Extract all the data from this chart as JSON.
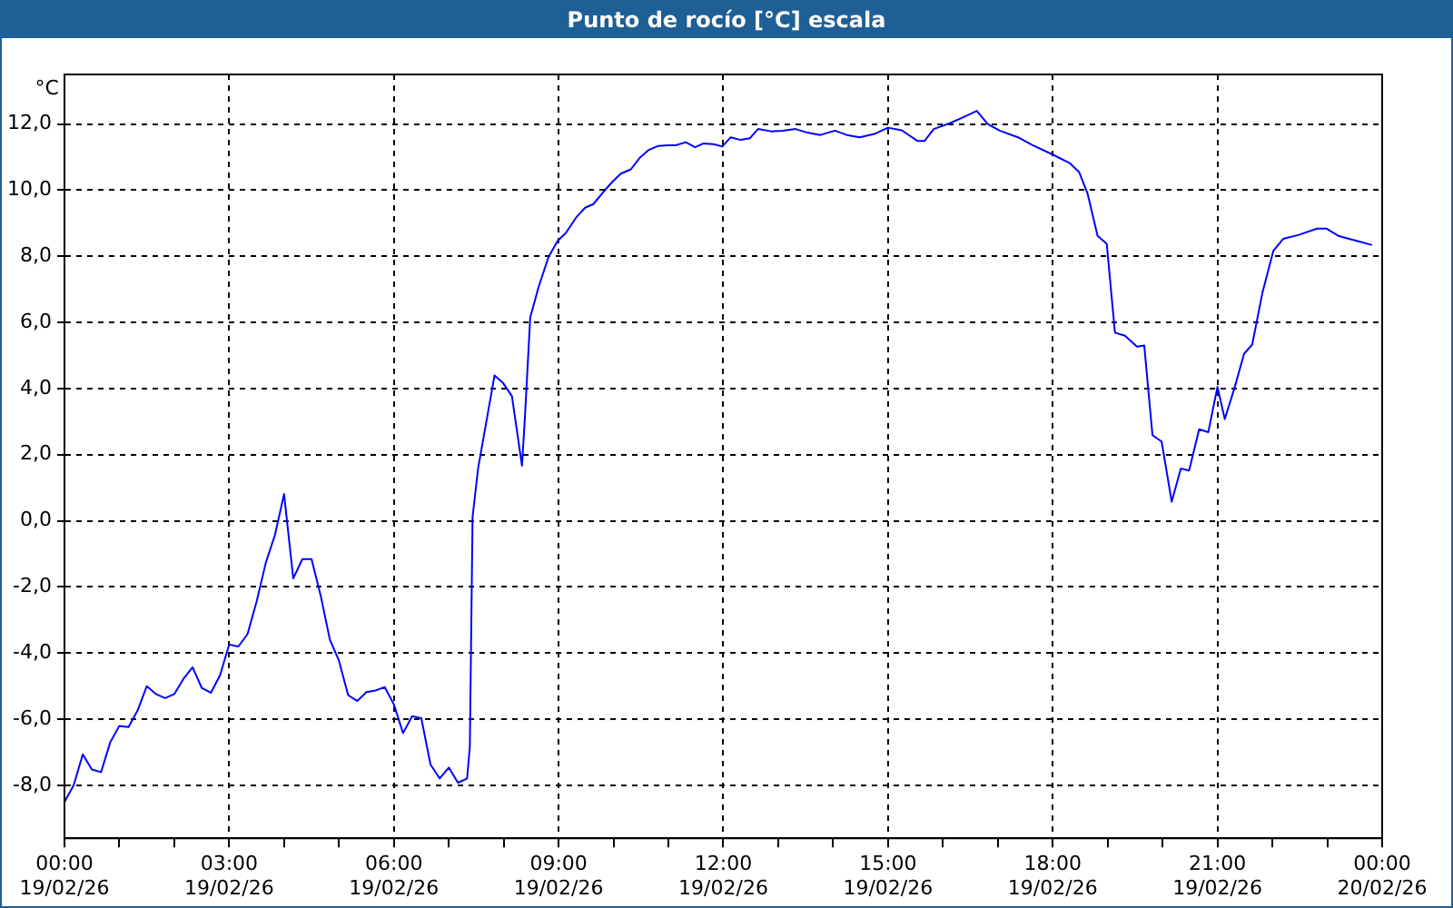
{
  "chart_data": {
    "type": "line",
    "title": "Punto de rocío [°C] escala",
    "ylabel": "°C",
    "x": [
      "--02-19T00:00",
      "--02-19T00:10",
      "--02-19T00:20",
      "--02-19T00:30",
      "--02-19T00:40",
      "--02-19T00:50",
      "--02-19T01:00",
      "--02-19T01:10",
      "--02-19T01:20",
      "--02-19T01:30",
      "--02-19T01:40",
      "--02-19T01:50",
      "--02-19T02:00",
      "--02-19T02:10",
      "--02-19T02:20",
      "--02-19T02:30",
      "--02-19T02:40",
      "--02-19T02:50",
      "--02-19T03:00",
      "--02-19T03:10",
      "--02-19T03:20",
      "--02-19T03:30",
      "--02-19T03:40",
      "--02-19T03:50",
      "--02-19T04:00",
      "--02-19T04:10",
      "--02-19T04:20",
      "--02-19T04:30",
      "--02-19T04:40",
      "--02-19T04:50",
      "--02-19T05:00",
      "--02-19T05:10",
      "--02-19T05:20",
      "--02-19T05:30",
      "--02-19T05:40",
      "--02-19T05:50",
      "--02-19T06:00",
      "--02-19T06:10",
      "--02-19T06:20",
      "--02-19T06:30",
      "--02-19T06:40",
      "--02-19T06:50",
      "--02-19T07:00",
      "--02-19T07:10",
      "--02-19T07:20",
      "--02-19T07:23",
      "--02-19T07:26",
      "--02-19T07:32",
      "--02-19T07:50",
      "--02-19T07:59",
      "--02-19T08:09",
      "--02-19T08:20",
      "--02-19T08:23",
      "--02-19T08:29",
      "--02-19T08:38",
      "--02-19T08:49",
      "--02-19T08:59",
      "--02-19T09:08",
      "--02-19T09:19",
      "--02-19T09:29",
      "--02-19T09:38",
      "--02-19T09:49",
      "--02-19T09:59",
      "--02-19T10:08",
      "--02-19T10:19",
      "--02-19T10:29",
      "--02-19T10:38",
      "--02-19T10:49",
      "--02-19T10:59",
      "--02-19T11:08",
      "--02-19T11:19",
      "--02-19T11:29",
      "--02-19T11:38",
      "--02-19T11:49",
      "--02-19T11:59",
      "--02-19T12:08",
      "--02-19T12:19",
      "--02-19T12:29",
      "--02-19T12:38",
      "--02-19T12:52",
      "--02-19T13:05",
      "--02-19T13:19",
      "--02-19T13:32",
      "--02-19T13:46",
      "--02-19T14:02",
      "--02-19T14:15",
      "--02-19T14:29",
      "--02-19T14:45",
      "--02-19T15:00",
      "--02-19T15:15",
      "--02-19T15:32",
      "--02-19T15:40",
      "--02-19T15:50",
      "--02-19T16:08",
      "--02-19T16:25",
      "--02-19T16:37",
      "--02-19T16:49",
      "--02-19T17:02",
      "--02-19T17:22",
      "--02-19T17:38",
      "--02-19T17:59",
      "--02-19T18:19",
      "--02-19T18:29",
      "--02-19T18:38",
      "--02-19T18:49",
      "--02-19T18:59",
      "--02-19T19:08",
      "--02-19T19:19",
      "--02-19T19:32",
      "--02-19T19:40",
      "--02-19T19:49",
      "--02-19T19:59",
      "--02-19T20:10",
      "--02-19T20:20",
      "--02-19T20:29",
      "--02-19T20:40",
      "--02-19T20:50",
      "--02-19T21:00",
      "--02-19T21:08",
      "--02-19T21:19",
      "--02-19T21:29",
      "--02-19T21:38",
      "--02-19T21:49",
      "--02-19T22:01",
      "--02-19T22:12",
      "--02-19T22:29",
      "--02-19T22:49",
      "--02-19T22:59",
      "--02-19T23:12",
      "--02-19T23:32",
      "--02-19T23:49"
    ],
    "series": [
      {
        "color": "#0000ff",
        "values": [
          -8.5,
          -8.0,
          -7.06,
          -7.52,
          -7.6,
          -6.7,
          -6.2,
          -6.24,
          -5.73,
          -5.0,
          -5.24,
          -5.36,
          -5.24,
          -4.78,
          -4.43,
          -5.05,
          -5.2,
          -4.67,
          -3.74,
          -3.8,
          -3.43,
          -2.44,
          -1.27,
          -0.43,
          0.81,
          -1.74,
          -1.16,
          -1.16,
          -2.26,
          -3.59,
          -4.23,
          -5.27,
          -5.45,
          -5.18,
          -5.13,
          -5.03,
          -5.55,
          -6.42,
          -5.91,
          -5.97,
          -7.37,
          -7.79,
          -7.46,
          -7.92,
          -7.79,
          -6.83,
          0.12,
          1.58,
          4.4,
          4.18,
          3.77,
          1.67,
          3.04,
          6.15,
          7.06,
          7.98,
          8.47,
          8.71,
          9.17,
          9.47,
          9.58,
          9.95,
          10.26,
          10.5,
          10.63,
          10.99,
          11.21,
          11.34,
          11.36,
          11.36,
          11.45,
          11.3,
          11.41,
          11.39,
          11.32,
          11.6,
          11.52,
          11.57,
          11.85,
          11.78,
          11.8,
          11.85,
          11.74,
          11.67,
          11.8,
          11.67,
          11.6,
          11.7,
          11.89,
          11.81,
          11.49,
          11.49,
          11.85,
          12.03,
          12.24,
          12.4,
          12.0,
          11.8,
          11.6,
          11.36,
          11.09,
          10.81,
          10.54,
          9.9,
          8.62,
          8.38,
          5.69,
          5.6,
          5.27,
          5.3,
          2.59,
          2.4,
          0.58,
          1.58,
          1.52,
          2.77,
          2.68,
          4.05,
          3.08,
          4.05,
          5.05,
          5.33,
          6.88,
          8.16,
          8.53,
          8.65,
          8.84,
          8.84,
          8.62,
          8.47,
          8.34
        ]
      }
    ],
    "xlim": [
      "--02-19T00:00",
      "--02-20T00:00"
    ],
    "xticks": [
      {
        "value": "--02-19T00:00",
        "label": "00:00\n19/02/26"
      },
      {
        "value": "--02-19T01:00",
        "label": null
      },
      {
        "value": "--02-19T02:00",
        "label": null
      },
      {
        "value": "--02-19T03:00",
        "label": "03:00\n19/02/26"
      },
      {
        "value": "--02-19T04:00",
        "label": null
      },
      {
        "value": "--02-19T05:00",
        "label": null
      },
      {
        "value": "--02-19T06:00",
        "label": "06:00\n19/02/26"
      },
      {
        "value": "--02-19T07:00",
        "label": null
      },
      {
        "value": "--02-19T08:00",
        "label": null
      },
      {
        "value": "--02-19T09:00",
        "label": "09:00\n19/02/26"
      },
      {
        "value": "--02-19T10:00",
        "label": null
      },
      {
        "value": "--02-19T11:00",
        "label": null
      },
      {
        "value": "--02-19T12:00",
        "label": "12:00\n19/02/26"
      },
      {
        "value": "--02-19T13:00",
        "label": null
      },
      {
        "value": "--02-19T14:00",
        "label": null
      },
      {
        "value": "--02-19T15:00",
        "label": "15:00\n19/02/26"
      },
      {
        "value": "--02-19T16:00",
        "label": null
      },
      {
        "value": "--02-19T17:00",
        "label": null
      },
      {
        "value": "--02-19T18:00",
        "label": "18:00\n19/02/26"
      },
      {
        "value": "--02-19T19:00",
        "label": null
      },
      {
        "value": "--02-19T20:00",
        "label": null
      },
      {
        "value": "--02-19T21:00",
        "label": "21:00\n19/02/26"
      },
      {
        "value": "--02-19T22:00",
        "label": null
      },
      {
        "value": "--02-19T23:00",
        "label": null
      },
      {
        "value": "--02-20T00:00",
        "label": "00:00\n20/02/26"
      }
    ],
    "ylim": [
      -9.6,
      13.5
    ],
    "yticks": [
      {
        "value": -8,
        "label": "-8,0"
      },
      {
        "value": -6,
        "label": "-6,0"
      },
      {
        "value": -4,
        "label": "-4,0"
      },
      {
        "value": -2,
        "label": "-2,0"
      },
      {
        "value": 0,
        "label": "0,0"
      },
      {
        "value": 2,
        "label": "2,0"
      },
      {
        "value": 4,
        "label": "4,0"
      },
      {
        "value": 6,
        "label": "6,0"
      },
      {
        "value": 8,
        "label": "8,0"
      },
      {
        "value": 10,
        "label": "10,0"
      },
      {
        "value": 12,
        "label": "12,0"
      }
    ],
    "grid": true,
    "legend": false,
    "marker": "none",
    "line_style": "solid"
  }
}
